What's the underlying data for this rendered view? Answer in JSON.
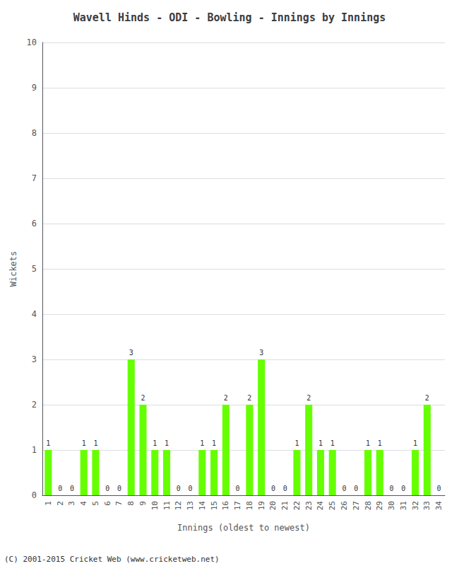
{
  "chart_data": {
    "type": "bar",
    "title": "Wavell Hinds - ODI - Bowling - Innings by Innings",
    "xlabel": "Innings (oldest to newest)",
    "ylabel": "Wickets",
    "annotations": [
      "(C) 2001-2015 Cricket Web (www.cricketweb.net)"
    ],
    "categories": [
      "1",
      "2",
      "3",
      "4",
      "5",
      "6",
      "7",
      "8",
      "9",
      "10",
      "11",
      "12",
      "13",
      "14",
      "15",
      "16",
      "17",
      "18",
      "19",
      "20",
      "21",
      "22",
      "23",
      "24",
      "25",
      "26",
      "27",
      "28",
      "29",
      "30",
      "31",
      "32",
      "33",
      "34"
    ],
    "values": [
      1,
      0,
      0,
      1,
      1,
      0,
      0,
      3,
      2,
      1,
      1,
      0,
      0,
      1,
      1,
      2,
      0,
      2,
      3,
      0,
      0,
      1,
      2,
      1,
      1,
      0,
      0,
      1,
      1,
      0,
      0,
      1,
      2,
      0
    ],
    "color": "#66ff00",
    "ylim": [
      0,
      10
    ],
    "yticks": [
      0,
      1,
      2,
      3,
      4,
      5,
      6,
      7,
      8,
      9,
      10
    ],
    "grid": true,
    "data_labels": true
  }
}
